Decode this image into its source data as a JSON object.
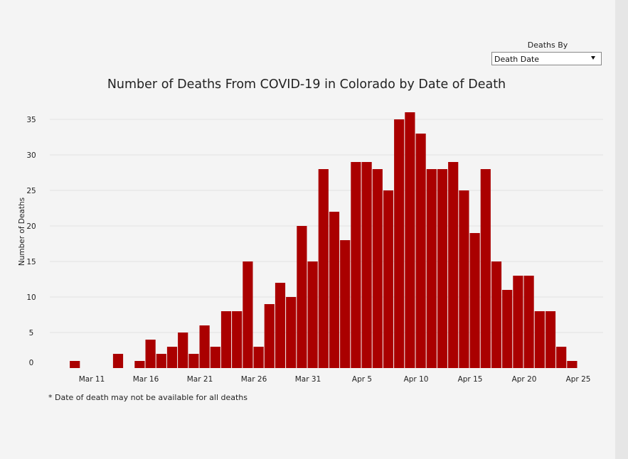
{
  "controls": {
    "deaths_by_label": "Deaths By",
    "deaths_by_selected": "Death Date"
  },
  "footnote": "* Date of death may not be available for all deaths",
  "chart_data": {
    "type": "bar",
    "title": "Number of Deaths From COVID-19 in Colorado by Date of Death",
    "xlabel": "",
    "ylabel": "Number of Deaths",
    "ylim": [
      0,
      35
    ],
    "yticks": [
      0,
      5,
      10,
      15,
      20,
      25,
      30,
      35
    ],
    "xticks": [
      "Mar 11",
      "Mar 16",
      "Mar 21",
      "Mar 26",
      "Mar 31",
      "Apr 5",
      "Apr 10",
      "Apr 15",
      "Apr 20",
      "Apr 25"
    ],
    "grid": true,
    "bar_color": "#aa0000",
    "categories": [
      "Mar 9",
      "Mar 13",
      "Mar 15",
      "Mar 16",
      "Mar 17",
      "Mar 18",
      "Mar 19",
      "Mar 20",
      "Mar 21",
      "Mar 22",
      "Mar 23",
      "Mar 24",
      "Mar 25",
      "Mar 26",
      "Mar 27",
      "Mar 28",
      "Mar 29",
      "Mar 30",
      "Mar 31",
      "Apr 1",
      "Apr 2",
      "Apr 3",
      "Apr 4",
      "Apr 5",
      "Apr 6",
      "Apr 7",
      "Apr 8",
      "Apr 9",
      "Apr 10",
      "Apr 11",
      "Apr 12",
      "Apr 13",
      "Apr 14",
      "Apr 15",
      "Apr 16",
      "Apr 17",
      "Apr 18",
      "Apr 19",
      "Apr 20",
      "Apr 21",
      "Apr 22",
      "Apr 23",
      "Apr 24"
    ],
    "values": [
      1,
      2,
      1,
      4,
      2,
      3,
      5,
      2,
      6,
      3,
      8,
      8,
      15,
      3,
      9,
      12,
      10,
      20,
      15,
      28,
      22,
      18,
      29,
      29,
      28,
      25,
      35,
      36,
      33,
      28,
      28,
      29,
      25,
      19,
      28,
      15,
      11,
      13,
      13,
      8,
      8,
      3,
      1
    ]
  }
}
